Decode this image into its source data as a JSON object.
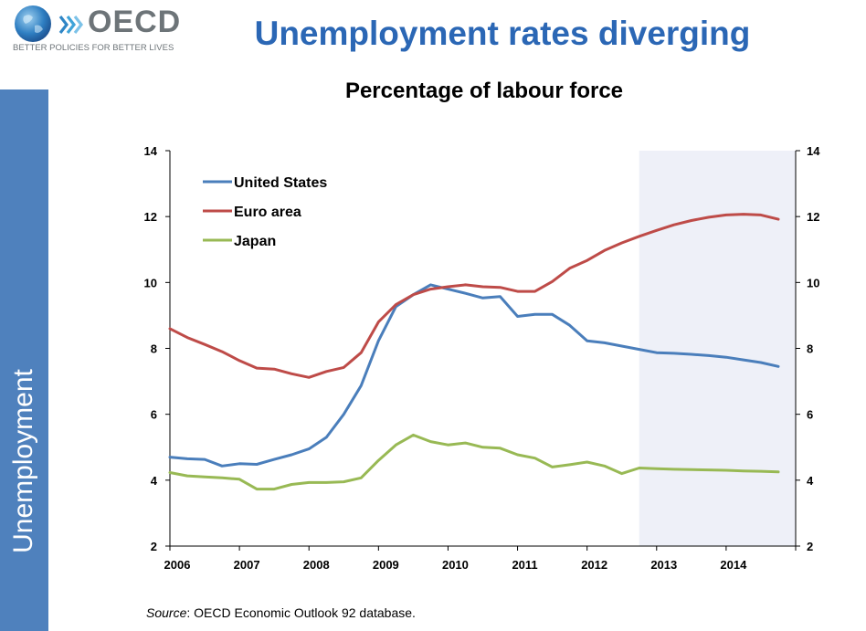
{
  "header": {
    "logo_text": "OECD",
    "logo_tagline": "BETTER POLICIES FOR BETTER LIVES",
    "headline": "Unemployment rates diverging"
  },
  "sidebar": {
    "label": "Unemployment"
  },
  "footer": {
    "source_label": "Source",
    "source_text": ": OECD Economic Outlook 92 database."
  },
  "colors": {
    "us": "#4a7ebb",
    "euro": "#be4b48",
    "japan": "#98b954",
    "headline": "#2b67b5",
    "sidebar": "#4f81bd",
    "projection_band": "#eef0f8"
  },
  "chart_data": {
    "type": "line",
    "title": "Percentage of labour force",
    "xlim": [
      2006,
      2015
    ],
    "ylim": [
      2,
      14
    ],
    "yticks": [
      2,
      4,
      6,
      8,
      10,
      12,
      14
    ],
    "xticks": [
      2006,
      2007,
      2008,
      2009,
      2010,
      2011,
      2012,
      2013,
      2014
    ],
    "x_tick_labels": [
      "2006",
      "2007",
      "2008",
      "2009",
      "2010",
      "2011",
      "2012",
      "2013",
      "2014"
    ],
    "secondary_y_axis": true,
    "projection_shading_from": 2012.75,
    "grid": false,
    "legend_position": "top-left",
    "x": [
      2006.0,
      2006.25,
      2006.5,
      2006.75,
      2007.0,
      2007.25,
      2007.5,
      2007.75,
      2008.0,
      2008.25,
      2008.5,
      2008.75,
      2009.0,
      2009.25,
      2009.5,
      2009.75,
      2010.0,
      2010.25,
      2010.5,
      2010.75,
      2011.0,
      2011.25,
      2011.5,
      2011.75,
      2012.0,
      2012.25,
      2012.5,
      2012.75,
      2013.0,
      2013.25,
      2013.5,
      2013.75,
      2014.0,
      2014.25,
      2014.5,
      2014.75
    ],
    "series": [
      {
        "name": "United States",
        "color": "#4a7ebb",
        "values": [
          4.7,
          4.65,
          4.63,
          4.43,
          4.5,
          4.48,
          4.63,
          4.77,
          4.95,
          5.3,
          6.0,
          6.87,
          8.23,
          9.27,
          9.63,
          9.93,
          9.8,
          9.67,
          9.53,
          9.57,
          8.97,
          9.03,
          9.03,
          8.7,
          8.23,
          8.17,
          8.07,
          7.97,
          7.87,
          7.85,
          7.82,
          7.78,
          7.73,
          7.65,
          7.57,
          7.45
        ]
      },
      {
        "name": "Euro area",
        "color": "#be4b48",
        "values": [
          8.6,
          8.33,
          8.12,
          7.9,
          7.63,
          7.4,
          7.37,
          7.23,
          7.12,
          7.3,
          7.42,
          7.87,
          8.8,
          9.33,
          9.63,
          9.8,
          9.87,
          9.93,
          9.87,
          9.85,
          9.73,
          9.73,
          10.03,
          10.43,
          10.67,
          10.97,
          11.2,
          11.4,
          11.58,
          11.75,
          11.88,
          11.98,
          12.05,
          12.07,
          12.05,
          11.92
        ]
      },
      {
        "name": "Japan",
        "color": "#98b954",
        "values": [
          4.23,
          4.13,
          4.1,
          4.07,
          4.03,
          3.73,
          3.73,
          3.87,
          3.93,
          3.93,
          3.95,
          4.07,
          4.6,
          5.07,
          5.37,
          5.17,
          5.07,
          5.13,
          5.0,
          4.97,
          4.77,
          4.67,
          4.4,
          4.47,
          4.55,
          4.43,
          4.2,
          4.37,
          4.35,
          4.33,
          4.32,
          4.31,
          4.3,
          4.28,
          4.27,
          4.25
        ]
      }
    ]
  }
}
